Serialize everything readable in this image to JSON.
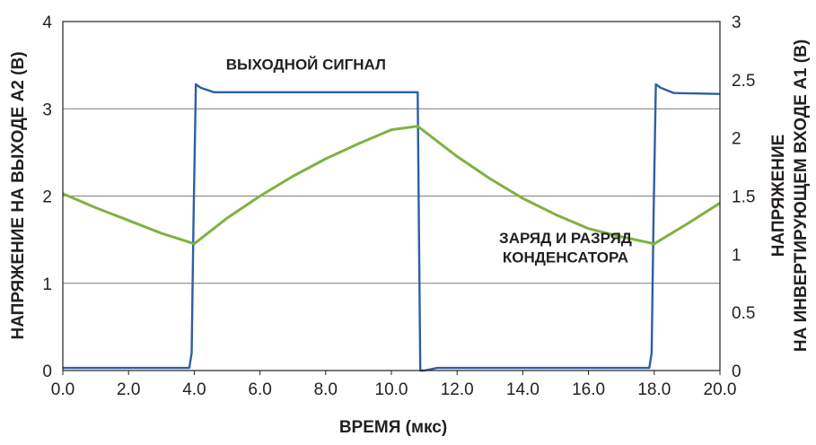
{
  "chart_data": {
    "type": "line",
    "title": "",
    "xlabel": "ВРЕМЯ (мкс)",
    "ylabel_left": "НАПРЯЖЕНИЕ НА ВЫХОДЕ А2 (В)",
    "ylabel_right_line1": "НАПРЯЖЕНИЕ",
    "ylabel_right_line2": "НА ИНВЕРТИРУЮЩЕМ ВХОДЕ А1 (В)",
    "xlim": [
      0,
      20
    ],
    "ylim_left": [
      0,
      4
    ],
    "ylim_right": [
      0,
      3
    ],
    "x_ticks": [
      "0.0",
      "2.0",
      "4.0",
      "6.0",
      "8.0",
      "10.0",
      "12.0",
      "14.0",
      "16.0",
      "18.0",
      "20.0"
    ],
    "y_ticks_left": [
      "0",
      "1",
      "2",
      "3",
      "4"
    ],
    "y_ticks_right": [
      "0",
      "0.5",
      "1",
      "1.5",
      "2",
      "2.5",
      "3"
    ],
    "grid": "horizontal",
    "annotations": [
      {
        "text": "ВЫХОДНОЙ СИГНАЛ",
        "x": 7.4,
        "y": 3.45
      },
      {
        "text": "ЗАРЯД И РАЗРЯД",
        "x": 15.3,
        "y": 1.46
      },
      {
        "text": "КОНДЕНСАТОРА",
        "x": 15.3,
        "y": 1.24
      }
    ],
    "series": [
      {
        "axis": "left",
        "color": "#2e5fa3",
        "x": [
          0,
          3.85,
          3.92,
          3.98,
          4.05,
          4.2,
          4.6,
          10.8,
          10.84,
          10.88,
          11.0,
          11.4,
          17.85,
          17.92,
          17.98,
          18.05,
          18.2,
          18.6,
          20
        ],
        "y": [
          0.03,
          0.03,
          0.2,
          1.8,
          3.28,
          3.24,
          3.19,
          3.19,
          1.6,
          0.0,
          0.0,
          0.03,
          0.03,
          0.2,
          1.8,
          3.28,
          3.24,
          3.18,
          3.17
        ]
      },
      {
        "axis": "right",
        "color": "#7fb241",
        "x": [
          0,
          1.0,
          2.0,
          3.0,
          4.0,
          5.0,
          6.0,
          7.0,
          8.0,
          9.0,
          10.0,
          10.8,
          12.0,
          13.0,
          14.0,
          15.0,
          16.0,
          17.0,
          18.0,
          19.0,
          20.0
        ],
        "y": [
          1.52,
          1.4,
          1.29,
          1.18,
          1.09,
          1.31,
          1.5,
          1.67,
          1.82,
          1.95,
          2.07,
          2.1,
          1.84,
          1.65,
          1.48,
          1.34,
          1.22,
          1.15,
          1.09,
          1.26,
          1.44
        ]
      }
    ]
  }
}
